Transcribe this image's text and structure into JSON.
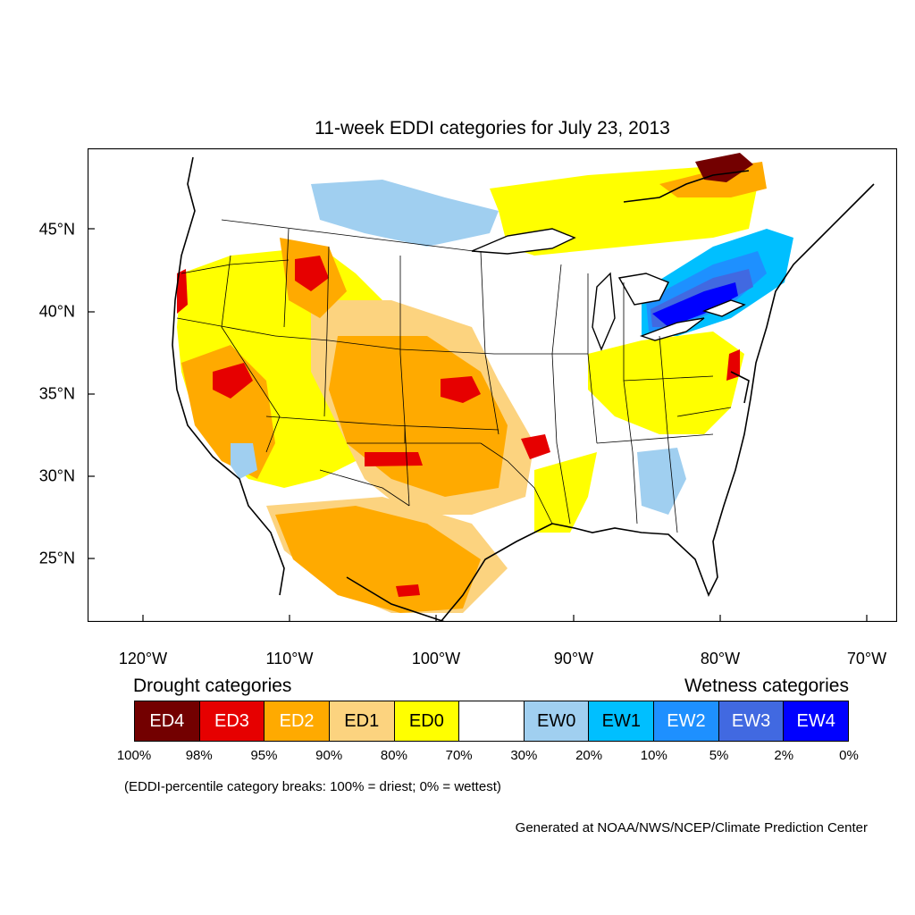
{
  "title": "11-week EDDI categories for July 23, 2013",
  "lat_labels": [
    "45°N",
    "40°N",
    "35°N",
    "30°N",
    "25°N"
  ],
  "lon_labels": [
    "120°W",
    "110°W",
    "100°W",
    "90°W",
    "80°W",
    "70°W"
  ],
  "legend": {
    "drought_heading": "Drought categories",
    "wetness_heading": "Wetness categories",
    "categories": [
      {
        "label": "ED4",
        "color": "#730000",
        "text_color": "#ffffff"
      },
      {
        "label": "ED3",
        "color": "#e60000",
        "text_color": "#ffffff"
      },
      {
        "label": "ED2",
        "color": "#ffaa00",
        "text_color": "#ffffff"
      },
      {
        "label": "ED1",
        "color": "#fcd37f",
        "text_color": "#000000"
      },
      {
        "label": "ED0",
        "color": "#ffff00",
        "text_color": "#000000"
      },
      {
        "label": "",
        "color": "#ffffff",
        "text_color": "#000000"
      },
      {
        "label": "EW0",
        "color": "#a0cff0",
        "text_color": "#000000"
      },
      {
        "label": "EW1",
        "color": "#00bfff",
        "text_color": "#000000"
      },
      {
        "label": "EW2",
        "color": "#1e90ff",
        "text_color": "#ffffff"
      },
      {
        "label": "EW3",
        "color": "#4169e1",
        "text_color": "#ffffff"
      },
      {
        "label": "EW4",
        "color": "#0000ff",
        "text_color": "#ffffff"
      }
    ],
    "breaks": [
      "100%",
      "98%",
      "95%",
      "90%",
      "80%",
      "70%",
      "30%",
      "20%",
      "10%",
      "5%",
      "2%",
      "0%"
    ]
  },
  "note": "(EDDI-percentile category breaks: 100% = driest; 0% = wettest)",
  "credit": "Generated at NOAA/NWS/NCEP/Climate Prediction Center",
  "colors": {
    "ED4": "#730000",
    "ED3": "#e60000",
    "ED2": "#ffaa00",
    "ED1": "#fcd37f",
    "ED0": "#ffff00",
    "EW0": "#a0cff0",
    "EW1": "#00bfff",
    "EW2": "#1e90ff",
    "EW3": "#4169e1",
    "EW4": "#0000ff"
  }
}
